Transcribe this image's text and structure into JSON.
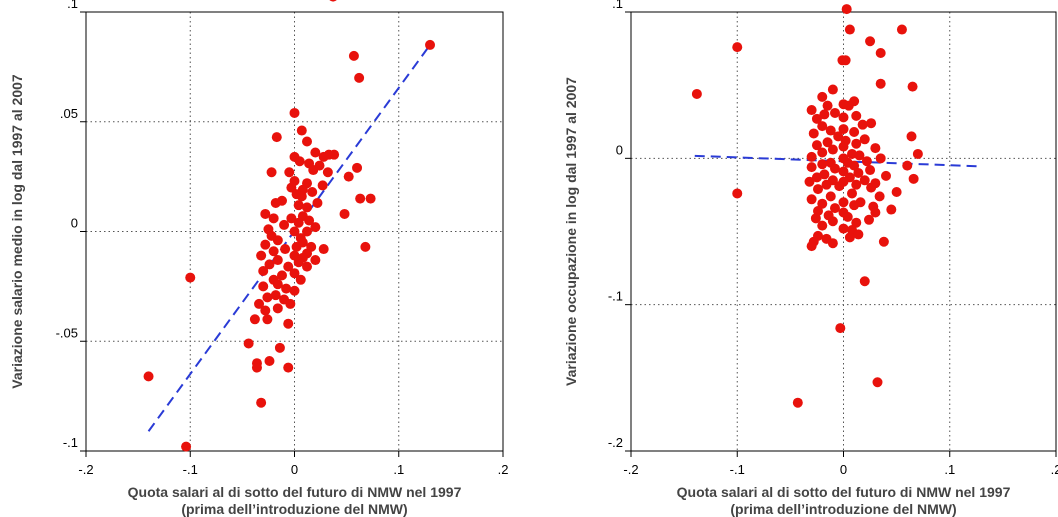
{
  "chart_data": [
    {
      "type": "scatter",
      "xlabel_lines": [
        "Quota salari al di sotto del futuro di NMW nel 1997",
        "(prima dell’introduzione del NMW)"
      ],
      "ylabel": "Variazione salario medio in log dal 1997 al 2007",
      "xlim": [
        -0.2,
        0.2
      ],
      "ylim": [
        -0.1,
        0.1
      ],
      "x_ticks": [
        -0.2,
        -0.1,
        0,
        0.1,
        0.2
      ],
      "x_tick_labels": [
        "-.2",
        "-.1",
        "0",
        ".1",
        ".2"
      ],
      "y_ticks": [
        -0.1,
        -0.05,
        0,
        0.05,
        0.1
      ],
      "y_tick_labels": [
        "-.1",
        "-.05",
        "0",
        ".05",
        ".1"
      ],
      "grid": true,
      "colors": {
        "points": "#e8120c",
        "fit": "#2a3bd6"
      },
      "fit_line": {
        "x": [
          -0.14,
          0.13
        ],
        "y": [
          -0.091,
          0.085
        ]
      },
      "points": [
        [
          0.037,
          0.107
        ],
        [
          0.13,
          0.085
        ],
        [
          0.057,
          0.08
        ],
        [
          0.062,
          0.07
        ],
        [
          0.0,
          0.054
        ],
        [
          -0.017,
          0.043
        ],
        [
          0.007,
          0.046
        ],
        [
          0.012,
          0.041
        ],
        [
          0.02,
          0.036
        ],
        [
          0.033,
          0.035
        ],
        [
          0.038,
          0.035
        ],
        [
          0.028,
          0.034
        ],
        [
          0.0,
          0.034
        ],
        [
          0.005,
          0.032
        ],
        [
          0.014,
          0.031
        ],
        [
          0.024,
          0.03
        ],
        [
          0.018,
          0.028
        ],
        [
          0.06,
          0.029
        ],
        [
          -0.005,
          0.027
        ],
        [
          0.032,
          0.027
        ],
        [
          -0.022,
          0.027
        ],
        [
          0.052,
          0.025
        ],
        [
          0.0,
          0.023
        ],
        [
          0.012,
          0.022
        ],
        [
          0.027,
          0.021
        ],
        [
          -0.003,
          0.02
        ],
        [
          0.008,
          0.019
        ],
        [
          0.017,
          0.018
        ],
        [
          0.002,
          0.017
        ],
        [
          0.007,
          0.016
        ],
        [
          0.063,
          0.015
        ],
        [
          0.073,
          0.015
        ],
        [
          -0.012,
          0.014
        ],
        [
          0.022,
          0.013
        ],
        [
          -0.018,
          0.013
        ],
        [
          0.004,
          0.012
        ],
        [
          0.012,
          0.011
        ],
        [
          0.048,
          0.008
        ],
        [
          -0.028,
          0.008
        ],
        [
          0.008,
          0.007
        ],
        [
          -0.003,
          0.006
        ],
        [
          -0.02,
          0.006
        ],
        [
          0.014,
          0.005
        ],
        [
          0.004,
          0.004
        ],
        [
          -0.01,
          0.003
        ],
        [
          0.02,
          0.002
        ],
        [
          -0.025,
          0.001
        ],
        [
          0.0,
          0.0
        ],
        [
          0.012,
          0.0
        ],
        [
          -0.022,
          -0.002
        ],
        [
          0.006,
          -0.003
        ],
        [
          -0.016,
          -0.004
        ],
        [
          0.008,
          -0.005
        ],
        [
          -0.028,
          -0.006
        ],
        [
          0.002,
          -0.007
        ],
        [
          0.016,
          -0.007
        ],
        [
          0.068,
          -0.007
        ],
        [
          -0.009,
          -0.008
        ],
        [
          0.028,
          -0.008
        ],
        [
          -0.02,
          -0.009
        ],
        [
          0.012,
          -0.01
        ],
        [
          -0.032,
          -0.011
        ],
        [
          0.0,
          -0.011
        ],
        [
          0.008,
          -0.012
        ],
        [
          -0.016,
          -0.013
        ],
        [
          0.02,
          -0.013
        ],
        [
          0.004,
          -0.014
        ],
        [
          -0.024,
          -0.015
        ],
        [
          -0.006,
          -0.016
        ],
        [
          0.012,
          -0.016
        ],
        [
          -0.03,
          -0.018
        ],
        [
          0.0,
          -0.019
        ],
        [
          -0.012,
          -0.02
        ],
        [
          -0.1,
          -0.021
        ],
        [
          -0.02,
          -0.022
        ],
        [
          0.006,
          -0.022
        ],
        [
          -0.016,
          -0.024
        ],
        [
          -0.03,
          -0.025
        ],
        [
          -0.008,
          -0.026
        ],
        [
          0.0,
          -0.027
        ],
        [
          -0.018,
          -0.029
        ],
        [
          -0.026,
          -0.03
        ],
        [
          -0.01,
          -0.031
        ],
        [
          -0.034,
          -0.033
        ],
        [
          -0.004,
          -0.033
        ],
        [
          -0.016,
          -0.035
        ],
        [
          -0.028,
          -0.036
        ],
        [
          -0.038,
          -0.04
        ],
        [
          -0.026,
          -0.04
        ],
        [
          -0.006,
          -0.042
        ],
        [
          -0.044,
          -0.051
        ],
        [
          -0.014,
          -0.053
        ],
        [
          -0.024,
          -0.059
        ],
        [
          -0.036,
          -0.06
        ],
        [
          -0.036,
          -0.062
        ],
        [
          -0.006,
          -0.062
        ],
        [
          -0.14,
          -0.066
        ],
        [
          -0.032,
          -0.078
        ],
        [
          -0.104,
          -0.098
        ]
      ]
    },
    {
      "type": "scatter",
      "xlabel_lines": [
        "Quota salari al di sotto del futuro di NMW nel 1997",
        "(prima dell’introduzione del NMW)"
      ],
      "ylabel": "Variazione occupazione in log dal 1997 al 2007",
      "xlim": [
        -0.2,
        0.2
      ],
      "ylim": [
        -0.2,
        0.1
      ],
      "x_ticks": [
        -0.2,
        -0.1,
        0,
        0.1,
        0.2
      ],
      "x_tick_labels": [
        "-.2",
        "-.1",
        "0",
        ".1",
        ".2"
      ],
      "y_ticks": [
        -0.2,
        -0.1,
        0,
        0.1
      ],
      "y_tick_labels": [
        "-.2",
        "-.1",
        "0",
        ".1"
      ],
      "grid": true,
      "colors": {
        "points": "#e8120c",
        "fit": "#2a3bd6"
      },
      "fit_line": {
        "x": [
          -0.14,
          0.13
        ],
        "y": [
          0.0017,
          -0.0055
        ]
      },
      "points": [
        [
          0.003,
          0.102
        ],
        [
          0.006,
          0.088
        ],
        [
          0.055,
          0.088
        ],
        [
          0.025,
          0.08
        ],
        [
          -0.1,
          0.076
        ],
        [
          0.035,
          0.072
        ],
        [
          -0.001,
          0.067
        ],
        [
          0.002,
          0.067
        ],
        [
          0.035,
          0.051
        ],
        [
          0.065,
          0.049
        ],
        [
          -0.138,
          0.044
        ],
        [
          -0.01,
          0.047
        ],
        [
          -0.02,
          0.042
        ],
        [
          0.01,
          0.039
        ],
        [
          0.0,
          0.037
        ],
        [
          -0.015,
          0.036
        ],
        [
          0.005,
          0.036
        ],
        [
          -0.03,
          0.033
        ],
        [
          -0.008,
          0.031
        ],
        [
          -0.018,
          0.03
        ],
        [
          0.012,
          0.029
        ],
        [
          0.0,
          0.028
        ],
        [
          -0.025,
          0.027
        ],
        [
          0.026,
          0.024
        ],
        [
          0.018,
          0.023
        ],
        [
          -0.02,
          0.022
        ],
        [
          0.0,
          0.02
        ],
        [
          -0.012,
          0.019
        ],
        [
          0.01,
          0.018
        ],
        [
          -0.028,
          0.017
        ],
        [
          0.064,
          0.015
        ],
        [
          -0.005,
          0.015
        ],
        [
          0.02,
          0.013
        ],
        [
          0.002,
          0.012
        ],
        [
          -0.015,
          0.011
        ],
        [
          0.012,
          0.01
        ],
        [
          -0.025,
          0.009
        ],
        [
          0.0,
          0.008
        ],
        [
          0.03,
          0.007
        ],
        [
          -0.01,
          0.006
        ],
        [
          -0.02,
          0.004
        ],
        [
          0.008,
          0.003
        ],
        [
          0.07,
          0.003
        ],
        [
          0.015,
          0.002
        ],
        [
          -0.03,
          0.001
        ],
        [
          0.0,
          0.0
        ],
        [
          0.035,
          0.0
        ],
        [
          0.022,
          -0.002
        ],
        [
          -0.012,
          -0.003
        ],
        [
          0.004,
          -0.003
        ],
        [
          -0.02,
          -0.004
        ],
        [
          0.01,
          -0.005
        ],
        [
          0.06,
          -0.005
        ],
        [
          -0.03,
          -0.006
        ],
        [
          -0.008,
          -0.007
        ],
        [
          0.025,
          -0.008
        ],
        [
          0.0,
          -0.009
        ],
        [
          0.014,
          -0.01
        ],
        [
          -0.018,
          -0.011
        ],
        [
          0.04,
          -0.012
        ],
        [
          -0.025,
          -0.013
        ],
        [
          0.006,
          -0.013
        ],
        [
          0.066,
          -0.014
        ],
        [
          -0.01,
          -0.015
        ],
        [
          0.02,
          -0.015
        ],
        [
          -0.032,
          -0.016
        ],
        [
          0.0,
          -0.016
        ],
        [
          0.03,
          -0.017
        ],
        [
          -0.016,
          -0.018
        ],
        [
          0.012,
          -0.018
        ],
        [
          -0.004,
          -0.019
        ],
        [
          0.026,
          -0.02
        ],
        [
          -0.024,
          -0.021
        ],
        [
          0.05,
          -0.023
        ],
        [
          -0.1,
          -0.024
        ],
        [
          0.008,
          -0.024
        ],
        [
          -0.012,
          -0.026
        ],
        [
          0.034,
          -0.026
        ],
        [
          -0.03,
          -0.028
        ],
        [
          0.0,
          -0.03
        ],
        [
          0.016,
          -0.03
        ],
        [
          -0.02,
          -0.031
        ],
        [
          0.01,
          -0.032
        ],
        [
          0.028,
          -0.033
        ],
        [
          -0.008,
          -0.034
        ],
        [
          0.045,
          -0.035
        ],
        [
          -0.024,
          -0.036
        ],
        [
          0.0,
          -0.037
        ],
        [
          0.03,
          -0.037
        ],
        [
          -0.014,
          -0.039
        ],
        [
          0.004,
          -0.04
        ],
        [
          -0.026,
          -0.041
        ],
        [
          0.024,
          -0.042
        ],
        [
          -0.01,
          -0.043
        ],
        [
          0.012,
          -0.044
        ],
        [
          -0.02,
          -0.046
        ],
        [
          0.0,
          -0.048
        ],
        [
          0.008,
          -0.049
        ],
        [
          0.014,
          -0.052
        ],
        [
          -0.024,
          -0.053
        ],
        [
          0.006,
          -0.054
        ],
        [
          -0.016,
          -0.055
        ],
        [
          -0.028,
          -0.057
        ],
        [
          0.038,
          -0.057
        ],
        [
          -0.01,
          -0.058
        ],
        [
          -0.03,
          -0.06
        ],
        [
          0.02,
          -0.084
        ],
        [
          -0.003,
          -0.116
        ],
        [
          0.032,
          -0.153
        ],
        [
          -0.043,
          -0.167
        ]
      ]
    }
  ]
}
